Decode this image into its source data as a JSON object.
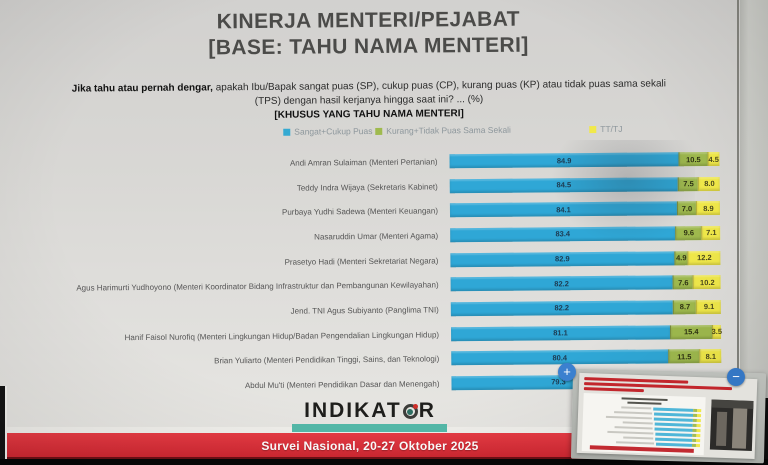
{
  "slide": {
    "title_line1": "KINERJA MENTERI/PEJABAT",
    "title_line2": "[BASE: TAHU NAMA MENTERI]",
    "question_bold": "Jika tahu atau pernah dengar,",
    "question_line1_rest": " apakah Ibu/Bapak sangat puas (SP), cukup puas (CP), kurang puas (KP) atau tidak puas sama sekali",
    "question_line2": "(TPS) dengan hasil kerjanya hingga saat ini? ... (%)",
    "question_line3": "[KHUSUS YANG TAHU NAMA MENTERI]",
    "logo_text_left": "INDIKAT",
    "logo_text_right": "R",
    "banner_text": "Survei Nasional, 20-27 Oktober 2025"
  },
  "legend": {
    "items": [
      {
        "label": "Sangat+Cukup Puas",
        "color": "#35aad2"
      },
      {
        "label": "Kurang+Tidak Puas Sama Sekali",
        "color": "#9fba4e"
      },
      {
        "label": "TT/TJ",
        "color": "#f1e94a"
      }
    ]
  },
  "chart_data": {
    "type": "bar",
    "orientation": "horizontal_stacked",
    "unit": "%",
    "xlim": [
      0,
      100
    ],
    "categories": [
      "Andi Amran Sulaiman (Menteri Pertanian)",
      "Teddy Indra Wijaya (Sekretaris Kabinet)",
      "Purbaya Yudhi Sadewa (Menteri Keuangan)",
      "Nasaruddin Umar (Menteri Agama)",
      "Prasetyo Hadi (Menteri Sekretariat Negara)",
      "Agus Harimurti Yudhoyono (Menteri Koordinator Bidang Infrastruktur dan Pembangunan Kewilayahan)",
      "Jend. TNI Agus Subiyanto (Panglima TNI)",
      "Hanif Faisol Nurofiq (Menteri Lingkungan Hidup/Badan Pengendalian Lingkungan Hidup)",
      "Brian Yuliarto (Menteri Pendidikan Tinggi, Sains, dan Teknologi)",
      "Abdul Mu'ti (Menteri Pendidikan Dasar dan Menengah)"
    ],
    "series": [
      {
        "name": "Sangat+Cukup Puas",
        "color": "#2fa7d6",
        "values": [
          84.9,
          84.5,
          84.1,
          83.4,
          82.9,
          82.2,
          82.2,
          81.1,
          80.4,
          79.3
        ]
      },
      {
        "name": "Kurang+Tidak Puas Sama Sekali",
        "color": "#9fba4e",
        "values": [
          10.5,
          7.5,
          7.0,
          9.6,
          4.9,
          7.6,
          8.7,
          15.4,
          11.5,
          null
        ]
      },
      {
        "name": "TT/TJ",
        "color": "#f1e94a",
        "values": [
          4.5,
          8.0,
          8.9,
          7.1,
          12.2,
          10.2,
          9.1,
          3.5,
          8.1,
          null
        ]
      }
    ],
    "occlusion_note": "last row KP and TT/TJ segments are hidden behind the video inset overlay"
  },
  "overlay": {
    "zoom_in_label": "+",
    "zoom_out_label": "−"
  }
}
